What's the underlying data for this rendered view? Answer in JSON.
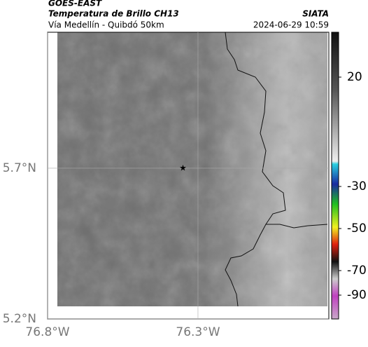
{
  "header": {
    "source": "GOES-EAST",
    "title": "Temperatura de Brillo CH13",
    "subtitle": "Vía Medellín - Quibdó 50km",
    "org": "SIATA",
    "datetime": "2024-06-29 10:59"
  },
  "map": {
    "xlim": [
      -76.8,
      -75.865
    ],
    "ylim": [
      5.2,
      6.151
    ],
    "xticks": [
      {
        "value": -76.8,
        "label": "76.8°W"
      },
      {
        "value": -76.3,
        "label": "76.3°W"
      }
    ],
    "yticks": [
      {
        "value": 5.2,
        "label": "5.2°N"
      },
      {
        "value": 5.7,
        "label": "5.7°N"
      }
    ],
    "grid": true,
    "marker": {
      "lon": -76.35,
      "lat": 5.7
    }
  },
  "colorbar": {
    "ticks": [
      20,
      -30,
      -50,
      -70,
      -90
    ]
  }
}
